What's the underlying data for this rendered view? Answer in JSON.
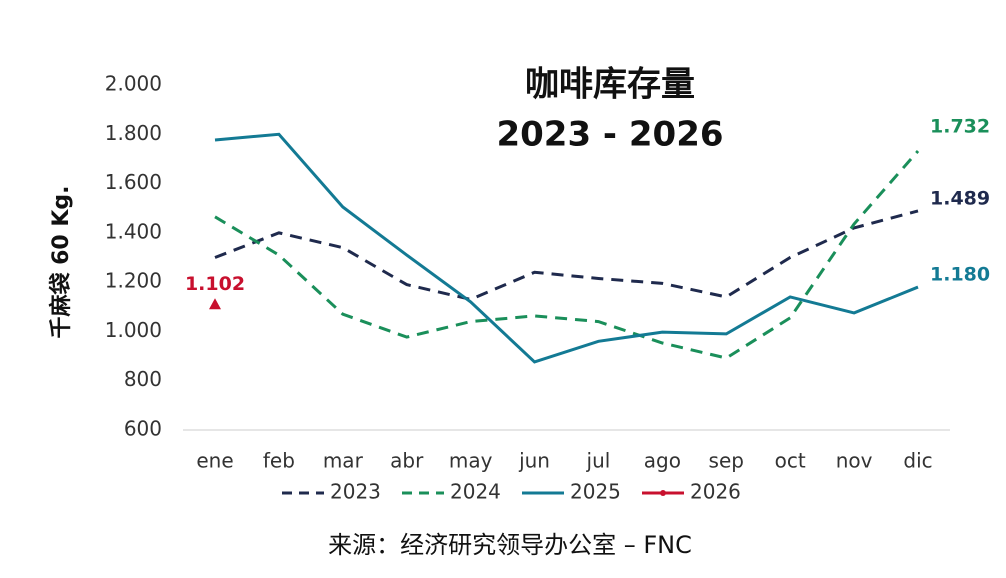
{
  "chart_data": {
    "type": "line",
    "title": [
      "咖啡库存量",
      "2023 - 2026"
    ],
    "y_label": "千麻袋 60 Kg.",
    "source": "来源：经济研究领导办公室 – FNC",
    "categories": [
      "ene",
      "feb",
      "mar",
      "abr",
      "may",
      "jun",
      "jul",
      "ago",
      "sep",
      "oct",
      "nov",
      "dic"
    ],
    "ylim": [
      600,
      2000
    ],
    "yticks": [
      {
        "value": 600,
        "label": "600"
      },
      {
        "value": 800,
        "label": "800"
      },
      {
        "value": 1000,
        "label": "1.000"
      },
      {
        "value": 1200,
        "label": "1.200"
      },
      {
        "value": 1400,
        "label": "1.400"
      },
      {
        "value": 1600,
        "label": "1.600"
      },
      {
        "value": 1800,
        "label": "1.800"
      },
      {
        "value": 2000,
        "label": "2.000"
      }
    ],
    "grid": false,
    "legend": "bottom",
    "series": [
      {
        "name": "2023",
        "color": "#1f2a4d",
        "dash": true,
        "values": [
          1300,
          1400,
          1340,
          1190,
          1130,
          1240,
          1215,
          1195,
          1140,
          1300,
          1420,
          1489
        ],
        "value_labels": [
          null,
          null,
          null,
          null,
          null,
          null,
          null,
          null,
          null,
          null,
          null,
          "1.489"
        ]
      },
      {
        "name": "2024",
        "color": "#1a8f5a",
        "dash": true,
        "values": [
          1465,
          1310,
          1070,
          977,
          1040,
          1063,
          1040,
          953,
          892,
          1055,
          1436,
          1732
        ],
        "value_labels": [
          null,
          null,
          null,
          null,
          null,
          null,
          null,
          null,
          null,
          null,
          null,
          "1.732"
        ]
      },
      {
        "name": "2025",
        "color": "#137a94",
        "dash": false,
        "values": [
          1777,
          1800,
          1505,
          1310,
          1120,
          876,
          960,
          997,
          990,
          1140,
          1075,
          1180
        ],
        "value_labels": [
          null,
          null,
          null,
          null,
          null,
          null,
          null,
          null,
          null,
          null,
          null,
          "1.180"
        ]
      },
      {
        "name": "2026",
        "color": "#c8102e",
        "dash": false,
        "values": [
          1102,
          null,
          null,
          null,
          null,
          null,
          null,
          null,
          null,
          null,
          null,
          null
        ],
        "value_labels": [
          "1.102",
          null,
          null,
          null,
          null,
          null,
          null,
          null,
          null,
          null,
          null,
          null
        ]
      }
    ]
  }
}
